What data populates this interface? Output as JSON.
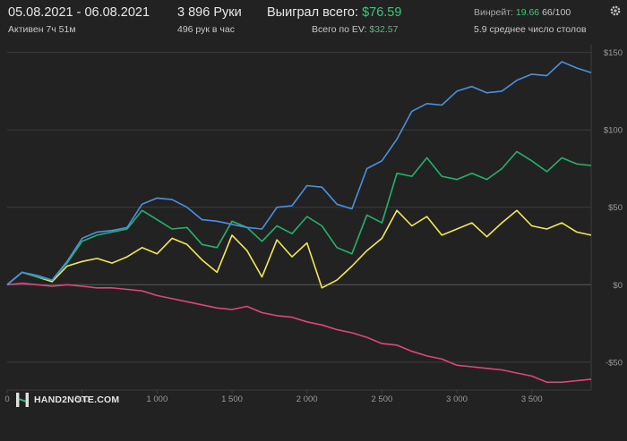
{
  "header": {
    "date_range": "05.08.2021 - 06.08.2021",
    "active_time": "Активен 7ч 51м",
    "hands": "3 896 Руки",
    "hands_per_hour": "496 рук в час",
    "won_total_label": "Выиграл всего:",
    "won_total_value": "$76.59",
    "ev_total_label": "Всего по EV:",
    "ev_total_value": "$32.57",
    "winrate_label": "Винрейт:",
    "winrate_value": "19.66",
    "winrate_ev": "66/100",
    "avg_tables": "5.9 среднее число столов"
  },
  "logo": {
    "text": "HAND2NOTE.COM",
    "icon": "hand2note-logo-icon"
  },
  "colors": {
    "background": "#222222",
    "grid": "#3c3c3c",
    "zero_line": "#5a5a5a",
    "axis_text": "#9a9a9a",
    "green_text": "#41c47b",
    "blue": "#4a90e2",
    "green": "#22b36b",
    "yellow": "#f2e94e",
    "red": "#e0457b"
  },
  "chart_data": {
    "type": "line",
    "xlim": [
      0,
      3896
    ],
    "ylim": [
      -68,
      155
    ],
    "x_ticks": [
      0,
      500,
      1000,
      1500,
      2000,
      2500,
      3000,
      3500
    ],
    "x_tick_labels": [
      "0",
      "500",
      "1 000",
      "1 500",
      "2 000",
      "2 500",
      "3 000",
      "3 500"
    ],
    "y_ticks": [
      150,
      100,
      50,
      0,
      -50
    ],
    "y_tick_labels": [
      "$150",
      "$100",
      "$50",
      "$0",
      "-$50"
    ],
    "grid": true,
    "series": [
      {
        "color": "#4a90e2",
        "x": [
          0,
          100,
          200,
          300,
          400,
          500,
          600,
          700,
          800,
          900,
          1000,
          1100,
          1200,
          1300,
          1400,
          1500,
          1600,
          1700,
          1800,
          1900,
          2000,
          2100,
          2200,
          2300,
          2400,
          2500,
          2600,
          2700,
          2800,
          2900,
          3000,
          3100,
          3200,
          3300,
          3400,
          3500,
          3600,
          3700,
          3800,
          3896
        ],
        "values": [
          0,
          8,
          6,
          3,
          15,
          30,
          34,
          35,
          37,
          52,
          56,
          55,
          50,
          42,
          41,
          39,
          37,
          36,
          50,
          51,
          64,
          63,
          52,
          49,
          75,
          80,
          94,
          112,
          117,
          116,
          125,
          128,
          124,
          125,
          132,
          136,
          135,
          144,
          140,
          137
        ]
      },
      {
        "color": "#22b36b",
        "x": [
          0,
          100,
          200,
          300,
          400,
          500,
          600,
          700,
          800,
          900,
          1000,
          1100,
          1200,
          1300,
          1400,
          1500,
          1600,
          1700,
          1800,
          1900,
          2000,
          2100,
          2200,
          2300,
          2400,
          2500,
          2600,
          2700,
          2800,
          2900,
          3000,
          3100,
          3200,
          3300,
          3400,
          3500,
          3600,
          3700,
          3800,
          3896
        ],
        "values": [
          0,
          8,
          5,
          3,
          14,
          28,
          32,
          34,
          36,
          48,
          42,
          36,
          37,
          26,
          24,
          41,
          37,
          28,
          38,
          33,
          44,
          38,
          24,
          20,
          45,
          40,
          72,
          70,
          82,
          70,
          68,
          72,
          68,
          75,
          86,
          80,
          73,
          82,
          78,
          77
        ]
      },
      {
        "color": "#f2e94e",
        "x": [
          0,
          100,
          200,
          300,
          400,
          500,
          600,
          700,
          800,
          900,
          1000,
          1100,
          1200,
          1300,
          1400,
          1500,
          1600,
          1700,
          1800,
          1900,
          2000,
          2100,
          2200,
          2300,
          2400,
          2500,
          2600,
          2700,
          2800,
          2900,
          3000,
          3100,
          3200,
          3300,
          3400,
          3500,
          3600,
          3700,
          3800,
          3896
        ],
        "values": [
          0,
          8,
          5,
          2,
          12,
          15,
          17,
          14,
          18,
          24,
          20,
          30,
          26,
          16,
          8,
          32,
          22,
          5,
          29,
          18,
          27,
          -2,
          3,
          12,
          22,
          30,
          48,
          38,
          44,
          32,
          36,
          40,
          31,
          40,
          48,
          38,
          36,
          40,
          34,
          32
        ]
      },
      {
        "color": "#e0457b",
        "x": [
          0,
          100,
          200,
          300,
          400,
          500,
          600,
          700,
          800,
          900,
          1000,
          1100,
          1200,
          1300,
          1400,
          1500,
          1600,
          1700,
          1800,
          1900,
          2000,
          2100,
          2200,
          2300,
          2400,
          2500,
          2600,
          2700,
          2800,
          2900,
          3000,
          3100,
          3200,
          3300,
          3400,
          3500,
          3600,
          3700,
          3800,
          3896
        ],
        "values": [
          0,
          1,
          0,
          -1,
          0,
          -1,
          -2,
          -2,
          -3,
          -4,
          -7,
          -9,
          -11,
          -13,
          -15,
          -16,
          -14,
          -18,
          -20,
          -21,
          -24,
          -26,
          -29,
          -31,
          -34,
          -38,
          -39,
          -43,
          -46,
          -48,
          -52,
          -53,
          -54,
          -55,
          -57,
          -59,
          -63,
          -63,
          -62,
          -61
        ]
      }
    ]
  }
}
